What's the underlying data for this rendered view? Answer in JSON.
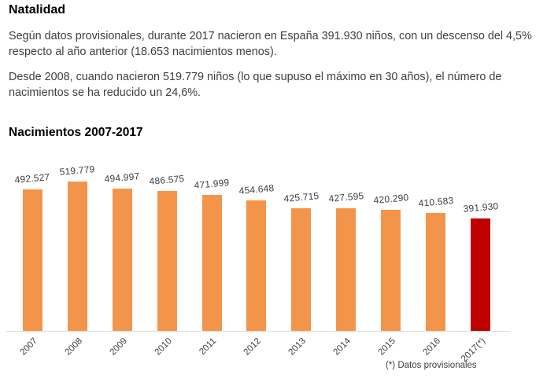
{
  "page": {
    "heading": "Natalidad",
    "paragraphs": {
      "p1": "Según datos provisionales, durante 2017 nacieron en España 391.930 niños, con un descenso del 4,5% respecto al año anterior (18.653 nacimientos menos).",
      "p2": "Desde 2008, cuando nacieron 519.779 niños (lo que supuso el máximo en 30 años), el número de nacimientos se ha reducido un 24,6%."
    }
  },
  "chart": {
    "title": "Nacimientos 2007-2017",
    "footnote": "(*) Datos provisionales"
  },
  "chart_data": {
    "type": "bar",
    "title": "Nacimientos 2007-2017",
    "categories": [
      "2007",
      "2008",
      "2009",
      "2010",
      "2011",
      "2012",
      "2013",
      "2014",
      "2015",
      "2016",
      "2017(*)"
    ],
    "values": [
      492527,
      519779,
      494997,
      486575,
      471999,
      454648,
      425715,
      427595,
      420290,
      410583,
      391930
    ],
    "display_values": [
      "492.527",
      "519.779",
      "494.997",
      "486.575",
      "471.999",
      "454.648",
      "425.715",
      "427.595",
      "420.290",
      "410.583",
      "391.930"
    ],
    "xlabel": "",
    "ylabel": "",
    "ylim": [
      0,
      519779
    ],
    "grid": false,
    "legend": false,
    "bar_color_default": "#F2954B",
    "bar_color_highlight": "#C00000",
    "highlight_index": 10,
    "axis_color": "#D9D9D9",
    "footnote": "(*) Datos provisionales"
  }
}
